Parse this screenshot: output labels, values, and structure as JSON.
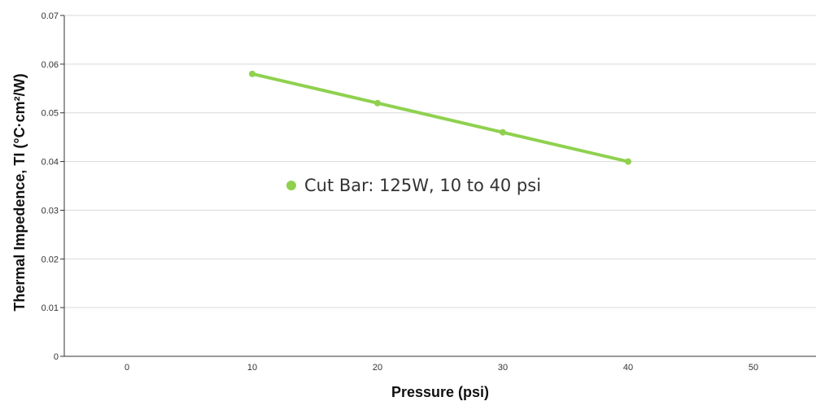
{
  "chart_data": {
    "type": "line",
    "title": "",
    "xlabel": "Pressure (psi)",
    "ylabel": "Thermal Impedence, TI (°C·cm²/W)",
    "xlim": [
      -5,
      55
    ],
    "ylim": [
      0,
      0.07
    ],
    "x_ticks": [
      0,
      10,
      20,
      30,
      40,
      50
    ],
    "y_ticks": [
      0,
      0.01,
      0.02,
      0.03,
      0.04,
      0.05,
      0.06,
      0.07
    ],
    "x_tick_labels": [
      "0",
      "10",
      "20",
      "30",
      "40",
      "50"
    ],
    "y_tick_labels": [
      "0",
      "0.01",
      "0.02",
      "0.03",
      "0.04",
      "0.05",
      "0.06",
      "0.07"
    ],
    "grid": true,
    "legend_position": "center",
    "series": [
      {
        "name": "Cut Bar: 125W, 10 to 40 psi",
        "color": "#8fd14f",
        "x": [
          10,
          20,
          30,
          40
        ],
        "y": [
          0.058,
          0.052,
          0.046,
          0.04
        ]
      }
    ]
  }
}
